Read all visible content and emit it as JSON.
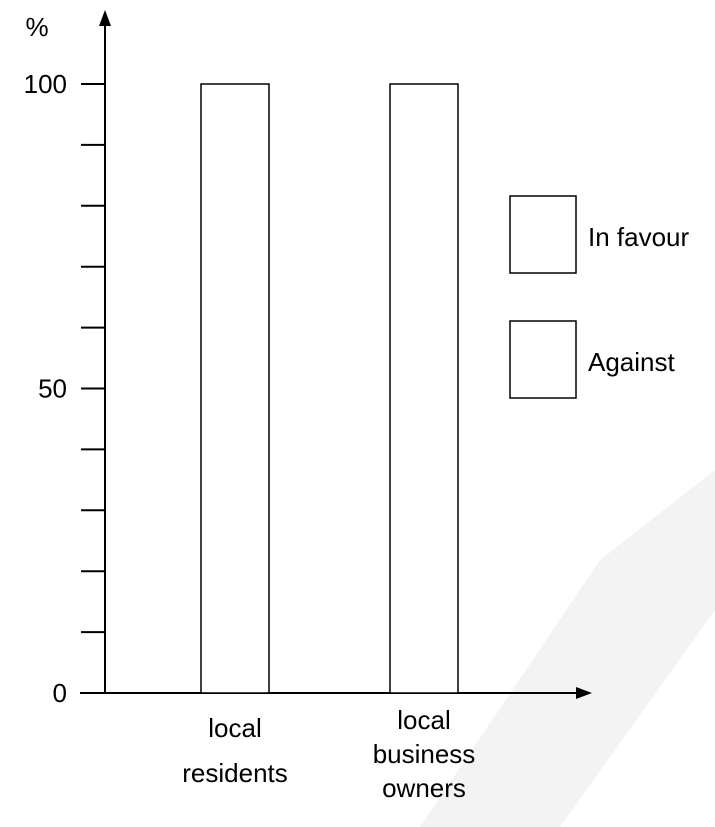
{
  "chart_data": {
    "type": "bar",
    "categories": [
      [
        "local",
        "residents"
      ],
      [
        "local",
        "business",
        "owners"
      ]
    ],
    "values": [
      100,
      100
    ],
    "ylabel": "%",
    "ylim": [
      0,
      100
    ],
    "ytick_labels": [
      {
        "value": 0,
        "label": "0"
      },
      {
        "value": 50,
        "label": "50"
      },
      {
        "value": 100,
        "label": "100"
      }
    ],
    "minor_tick_step": 10,
    "legend": {
      "position": "right",
      "entries": [
        "In favour",
        "Against"
      ]
    },
    "grid": false
  },
  "colors": {
    "stroke": "#000000",
    "bar_fill": "#ffffff",
    "watermark": "#f2f2f2"
  }
}
